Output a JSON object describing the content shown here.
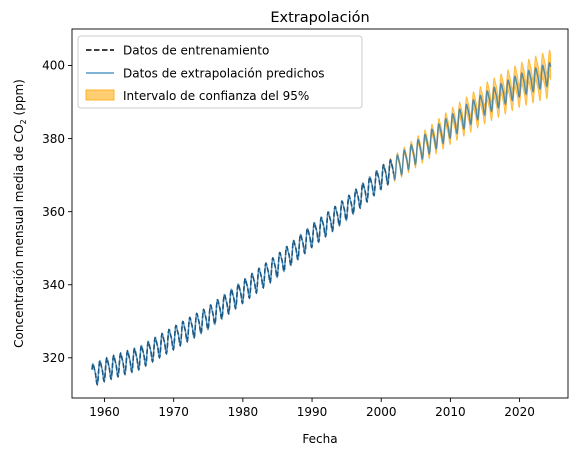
{
  "chart_data": {
    "type": "line",
    "title": "Extrapolación",
    "xlabel": "Fecha",
    "ylabel_main": "Concentración mensual media de CO",
    "ylabel_sub": "2",
    "ylabel_unit": " (ppm)",
    "xlim": [
      1955.3,
      2027.0
    ],
    "ylim": [
      309,
      410
    ],
    "x_ticks": [
      1960,
      1970,
      1980,
      1990,
      2000,
      2010,
      2020
    ],
    "x_tick_labels": [
      "1960",
      "1970",
      "1980",
      "1990",
      "2000",
      "2010",
      "2020"
    ],
    "y_ticks": [
      320,
      340,
      360,
      380,
      400
    ],
    "y_tick_labels": [
      "320",
      "340",
      "360",
      "380",
      "400"
    ],
    "grid": false,
    "legend_position": "top-left",
    "seasonal_amplitude": 2.8,
    "trend_knots": {
      "x": [
        1958,
        1960,
        1965,
        1970,
        1975,
        1980,
        1985,
        1990,
        1995,
        2000,
        2003,
        2010,
        2015,
        2020,
        2024.5
      ],
      "y": [
        315.2,
        316.9,
        320.1,
        325.6,
        331.1,
        338.3,
        345.4,
        353.6,
        361.0,
        369.5,
        373.5,
        383.5,
        389.8,
        394.8,
        398.0
      ]
    },
    "confidence_band_halfwidth": {
      "x": [
        2000,
        2003,
        2010,
        2015,
        2020,
        2024.5
      ],
      "y": [
        0.2,
        0.8,
        1.8,
        2.5,
        3.0,
        3.5
      ]
    },
    "series": [
      {
        "name": "Datos de entrenamiento",
        "x_range": [
          1958.2,
          2001.8
        ],
        "color": "#000000",
        "style": "dashed"
      },
      {
        "name": "Datos de extrapolación predichos",
        "x_range": [
          1958.2,
          2024.5
        ],
        "color": "#1f77b4",
        "style": "solid"
      },
      {
        "name": "Intervalo de confianza del 95%",
        "x_range": [
          2000.0,
          2024.5
        ],
        "color": "#ffa500",
        "style": "band"
      }
    ]
  }
}
